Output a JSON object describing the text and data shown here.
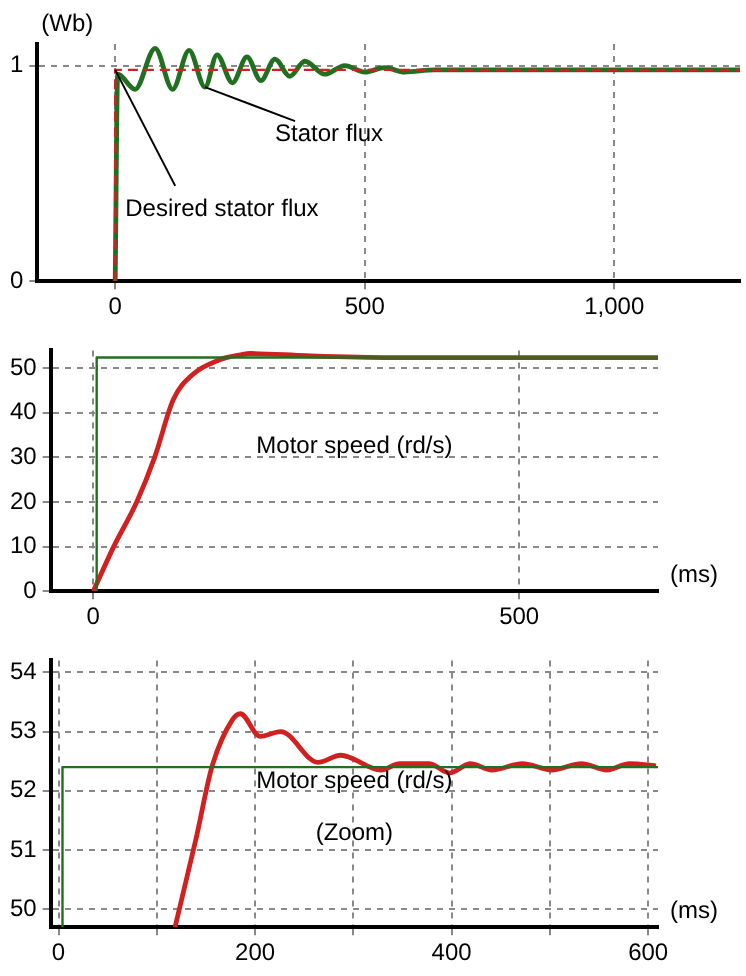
{
  "chart_data": [
    {
      "type": "line",
      "ylabel": "(Wb)",
      "xlim": [
        -156,
        1252
      ],
      "ylim": [
        0,
        1.1
      ],
      "xticks": [
        0,
        500,
        {
          "value": 1000,
          "label": "1,000"
        }
      ],
      "yticks": [
        0,
        1
      ],
      "grid": true,
      "marker": "none",
      "series": [
        {
          "name": "Desired stator flux",
          "color": "#d02020",
          "line_style": "dashed",
          "x": [
            0,
            0,
            1252
          ],
          "values": [
            0,
            0.98,
            0.98
          ]
        },
        {
          "name": "Stator flux",
          "color": "#207020",
          "line_style": "solid",
          "x": [
            0,
            5,
            40,
            80,
            115,
            148,
            180,
            204,
            235,
            264,
            292,
            320,
            350,
            380,
            420,
            460,
            500,
            540,
            580,
            640,
            1252
          ],
          "values": [
            0,
            0.96,
            0.89,
            1.08,
            0.89,
            1.07,
            0.9,
            1.05,
            0.92,
            1.04,
            0.93,
            1.03,
            0.95,
            1.02,
            0.96,
            1.0,
            0.97,
            0.99,
            0.97,
            0.98,
            0.98
          ]
        }
      ]
    },
    {
      "type": "line",
      "xlabel": "(ms)",
      "xlim": [
        -50,
        663
      ],
      "ylim": [
        0,
        54
      ],
      "xticks": [
        0,
        500
      ],
      "yticks": [
        0,
        10,
        20,
        30,
        40,
        50
      ],
      "grid": true,
      "marker": "none",
      "series": [
        {
          "color": "#207020",
          "line_style": "solid",
          "x": [
            4,
            4,
            663
          ],
          "values": [
            0,
            52.4,
            52.4
          ]
        },
        {
          "color": "#d02020",
          "line_style": "solid",
          "x": [
            0,
            24,
            51,
            72,
            94,
            116,
            147,
            173,
            185,
            250,
            350,
            663
          ],
          "values": [
            0,
            10,
            20,
            30,
            43,
            48.5,
            51.8,
            53,
            53.3,
            52.8,
            52.4,
            52.4
          ]
        }
      ],
      "annotations": [
        "Motor speed (rd/s)"
      ]
    },
    {
      "type": "line",
      "xlabel": "(ms)",
      "xlim": [
        -8,
        610
      ],
      "ylim": [
        49.7,
        54.2
      ],
      "xticks": [
        0,
        {
          "value": 100,
          "label": null
        },
        200,
        {
          "value": 300,
          "label": null
        },
        400,
        {
          "value": 500,
          "label": null
        },
        600
      ],
      "yticks": [
        50,
        51,
        52,
        53,
        54
      ],
      "grid": true,
      "marker": "none",
      "series": [
        {
          "color": "#207020",
          "line_style": "solid",
          "x": [
            4,
            4,
            610
          ],
          "values": [
            49.7,
            52.4,
            52.4
          ]
        },
        {
          "color": "#d02020",
          "line_style": "solid",
          "x": [
            118.5,
            140,
            156,
            177,
            185,
            205,
            226,
            264,
            287,
            328,
            347,
            377,
            398,
            419,
            441,
            472,
            502,
            532,
            558,
            581,
            608
          ],
          "values": [
            49.7,
            51.2,
            52.4,
            53.2,
            53.3,
            52.92,
            53.0,
            52.48,
            52.6,
            52.35,
            52.46,
            52.46,
            52.3,
            52.46,
            52.35,
            52.46,
            52.35,
            52.46,
            52.35,
            52.46,
            52.42
          ]
        }
      ],
      "annotations": [
        "Motor speed (rd/s)",
        "(Zoom)"
      ]
    }
  ]
}
